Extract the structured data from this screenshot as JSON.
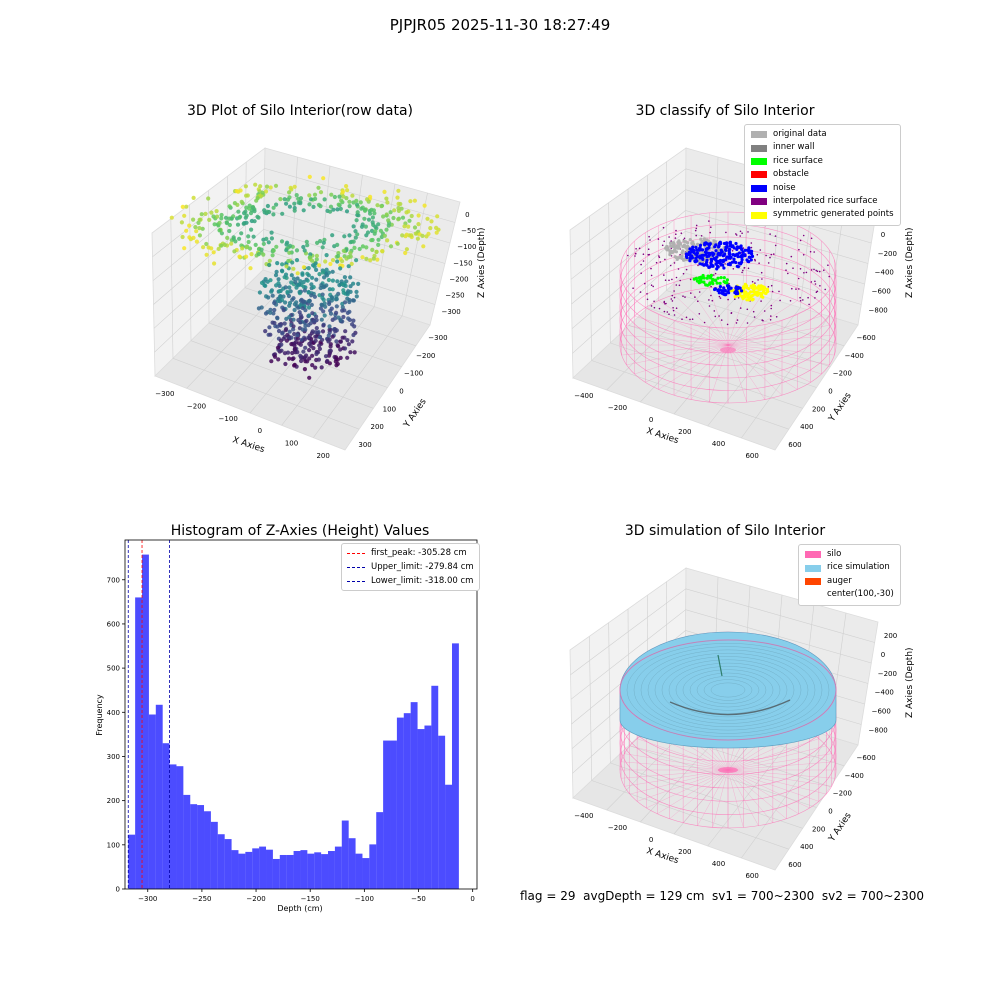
{
  "suptitle": "PJPJR05 2025-11-30 18:27:49",
  "status_text": "flag = 29  avgDepth = 129 cm  sv1 = 700~2300  sv2 = 700~2300",
  "colors": {
    "hist": "#0000ff",
    "first_peak": "#ff0000",
    "limits": "#0000aa",
    "silo": "#ff69b4",
    "rice": "#87ceeb",
    "auger": "#ff4500"
  },
  "chart_data": [
    {
      "type": "scatter",
      "title": "3D Plot of Silo Interior(row data)",
      "xlabel": "X Axies",
      "ylabel": "Y Axies",
      "zlabel": "Z Axies (Depth)",
      "x_ticks": [
        "−300",
        "−200",
        "−100",
        "0",
        "100",
        "200"
      ],
      "y_ticks": [
        "−300",
        "−200",
        "−100",
        "0",
        "100",
        "200",
        "300"
      ],
      "z_ticks": [
        "0",
        "−50",
        "−100",
        "−150",
        "−200",
        "−250",
        "−300"
      ],
      "colormap": "viridis",
      "grid": true
    },
    {
      "type": "scatter",
      "title": "3D classify of Silo Interior",
      "xlabel": "X Axies",
      "ylabel": "Y Axies",
      "zlabel": "Z Axies (Depth)",
      "x_ticks": [
        "−400",
        "−200",
        "0",
        "200",
        "400",
        "600"
      ],
      "y_ticks": [
        "−600",
        "−400",
        "−200",
        "0",
        "200",
        "400",
        "600"
      ],
      "z_ticks": [
        "200",
        "0",
        "−200",
        "−400",
        "−600",
        "−800"
      ],
      "legend_position": "top-right",
      "legend": [
        {
          "label": "original data",
          "color": "#b0b0b0"
        },
        {
          "label": "inner wall",
          "color": "#808080"
        },
        {
          "label": "rice surface",
          "color": "#00ff00"
        },
        {
          "label": "obstacle",
          "color": "#ff0000"
        },
        {
          "label": "noise",
          "color": "#0000ff"
        },
        {
          "label": "interpolated rice surface",
          "color": "#800080"
        },
        {
          "label": "symmetric generated points",
          "color": "#ffff00"
        }
      ],
      "grid": true
    },
    {
      "type": "bar",
      "title": "Histogram of Z-Axies (Height) Values",
      "xlabel": "Depth (cm)",
      "ylabel": "Frequency",
      "xlim": [
        -321,
        4
      ],
      "ylim": [
        0,
        790
      ],
      "x_ticks": [
        -300,
        -250,
        -200,
        -150,
        -100,
        -50,
        0
      ],
      "y_ticks": [
        0,
        100,
        200,
        300,
        400,
        500,
        600,
        700
      ],
      "bin_start": -318,
      "bin_width": 6.36,
      "values": [
        123,
        660,
        757,
        395,
        417,
        330,
        282,
        278,
        213,
        192,
        190,
        176,
        152,
        124,
        113,
        88,
        80,
        84,
        92,
        96,
        89,
        68,
        77,
        77,
        86,
        88,
        80,
        83,
        79,
        86,
        96,
        155,
        115,
        80,
        70,
        101,
        174,
        336,
        336,
        388,
        398,
        423,
        362,
        370,
        460,
        347,
        236,
        556
      ],
      "vlines": [
        {
          "label": "first_peak: -305.28 cm",
          "x": -305.28,
          "color": "#ff0000"
        },
        {
          "label": "Upper_limit: -279.84 cm",
          "x": -279.84,
          "color": "#0000aa"
        },
        {
          "label": "Lower_limit: -318.00 cm",
          "x": -318.0,
          "color": "#0000aa"
        }
      ],
      "legend_position": "top-right",
      "grid": false
    },
    {
      "type": "surface",
      "title": "3D simulation of Silo Interior",
      "xlabel": "X Axies",
      "ylabel": "Y Axies",
      "zlabel": "Z Axies (Depth)",
      "x_ticks": [
        "−400",
        "−200",
        "0",
        "200",
        "400",
        "600"
      ],
      "y_ticks": [
        "−600",
        "−400",
        "−200",
        "0",
        "200",
        "400",
        "600"
      ],
      "z_ticks": [
        "200",
        "0",
        "−200",
        "−400",
        "−600",
        "−800"
      ],
      "legend_position": "top-right",
      "legend": [
        {
          "label": "silo",
          "color": "#ff69b4"
        },
        {
          "label": "rice simulation",
          "color": "#87ceeb"
        },
        {
          "label": "auger",
          "color": "#ff4500"
        },
        {
          "label": "center(100,-30)",
          "color": ""
        }
      ],
      "grid": true
    }
  ]
}
